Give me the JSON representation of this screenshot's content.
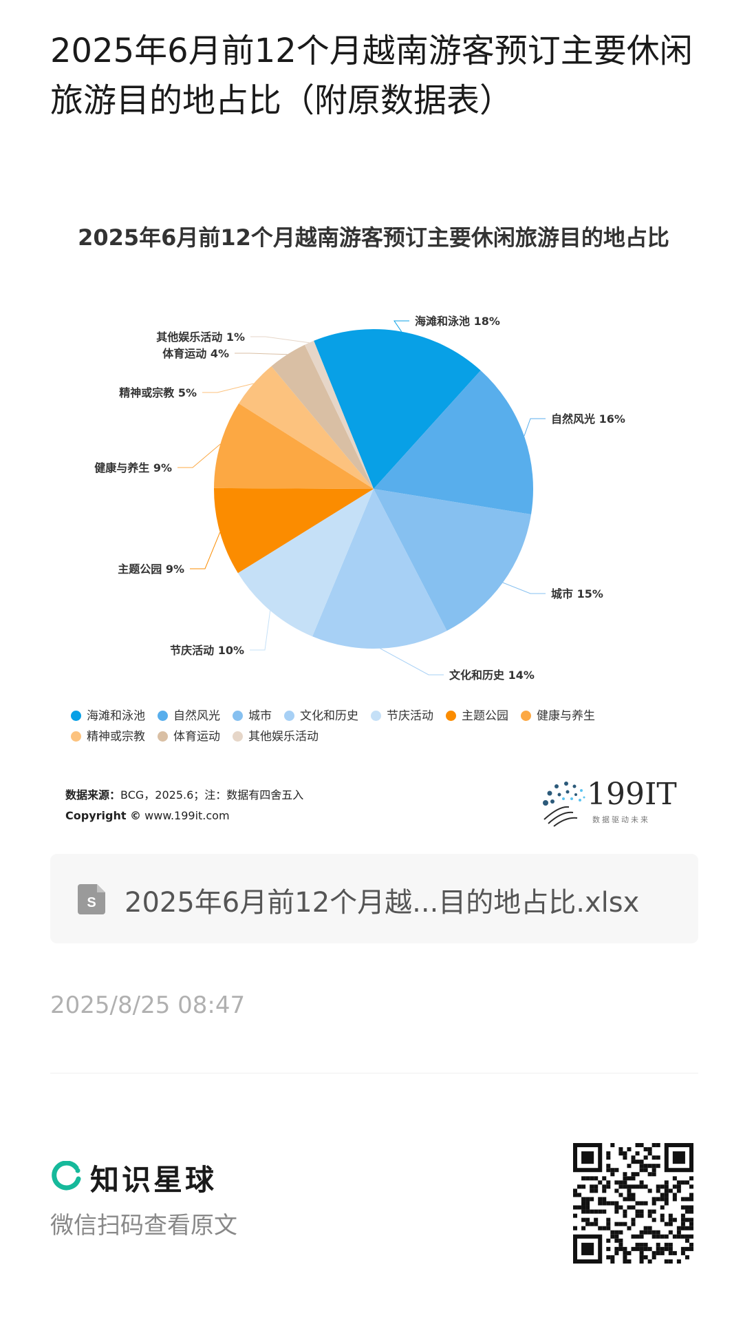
{
  "article": {
    "title": "2025年6月前12个月越南游客预订主要休闲旅游目的地占比（附原数据表）",
    "timestamp": "2025/8/25 08:47"
  },
  "chart_data": {
    "type": "pie",
    "title": "2025年6月前12个月越南游客预订主要休闲旅游目的地占比",
    "categories": [
      "海滩和泳池",
      "自然风光",
      "城市",
      "文化和历史",
      "节庆活动",
      "主题公园",
      "健康与养生",
      "精神或宗教",
      "体育运动",
      "其他娱乐活动"
    ],
    "values": [
      18,
      16,
      15,
      14,
      10,
      9,
      9,
      5,
      4,
      1
    ],
    "value_labels": [
      "海滩和泳池 18%",
      "自然风光 16%",
      "城市 15%",
      "文化和历史 14%",
      "节庆活动 10%",
      "主题公园 9%",
      "健康与养生 9%",
      "精神或宗教 5%",
      "体育运动 4%",
      "其他娱乐活动 1%"
    ],
    "colors": [
      "#08a0e6",
      "#58aeec",
      "#86c0f0",
      "#a7d0f5",
      "#c5e0f7",
      "#fb8c00",
      "#fca843",
      "#fcc27e",
      "#d9bfa4",
      "#e6d6c8"
    ],
    "legend_position": "bottom"
  },
  "source": {
    "label": "数据来源：",
    "text": "BCG，2025.6；注：数据有四舍五入",
    "copyright_label": "Copyright ©",
    "copyright_text": "www.199it.com"
  },
  "logo": {
    "text": "199IT",
    "sub": "数据驱动未来",
    "icon": "dandelion-icon"
  },
  "attachment": {
    "file_name": "2025年6月前12个月越...目的地占比.xlsx",
    "icon": "spreadsheet-file-icon"
  },
  "footer": {
    "brand_name": "知识星球",
    "brand_icon": "planet-ring-icon",
    "scan_text": "微信扫码查看原文",
    "qr_icon": "qr-code-icon"
  }
}
